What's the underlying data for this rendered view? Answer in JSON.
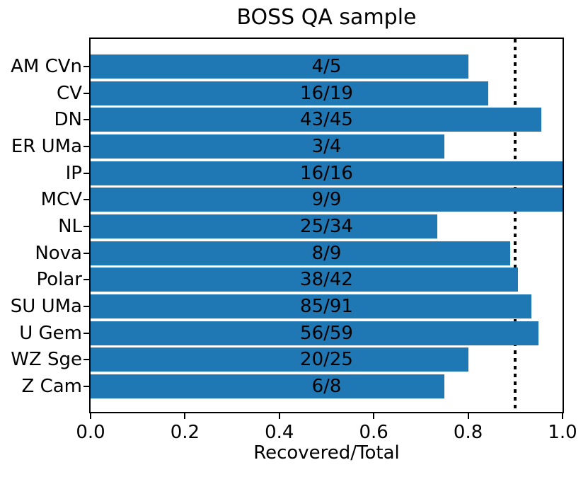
{
  "chart_data": {
    "type": "bar",
    "orientation": "horizontal",
    "title": "BOSS QA sample",
    "xlabel": "Recovered/Total",
    "ylabel": "",
    "categories": [
      "AM CVn",
      "CV",
      "DN",
      "ER UMa",
      "IP",
      "MCV",
      "NL",
      "Nova",
      "Polar",
      "SU UMa",
      "U Gem",
      "WZ Sge",
      "Z Cam"
    ],
    "recovered": [
      4,
      16,
      43,
      3,
      16,
      9,
      25,
      8,
      38,
      85,
      56,
      20,
      6
    ],
    "total": [
      5,
      19,
      45,
      4,
      16,
      9,
      34,
      9,
      42,
      91,
      59,
      25,
      8
    ],
    "values": [
      0.8,
      0.8421,
      0.9556,
      0.75,
      1.0,
      1.0,
      0.7353,
      0.8889,
      0.9048,
      0.9341,
      0.9492,
      0.8,
      0.75
    ],
    "bar_labels": [
      "4/5",
      "16/19",
      "43/45",
      "3/4",
      "16/16",
      "9/9",
      "25/34",
      "8/9",
      "38/42",
      "85/91",
      "56/59",
      "20/25",
      "6/8"
    ],
    "xlim": [
      0.0,
      1.0
    ],
    "x_ticks": [
      0.0,
      0.2,
      0.4,
      0.6,
      0.8,
      1.0
    ],
    "x_tick_labels": [
      "0.0",
      "0.2",
      "0.4",
      "0.6",
      "0.8",
      "1.0"
    ],
    "threshold_line": {
      "x": 0.9,
      "style": "dotted",
      "color": "#000000"
    },
    "bar_color": "#1f77b4",
    "grid": false,
    "legend": null
  }
}
